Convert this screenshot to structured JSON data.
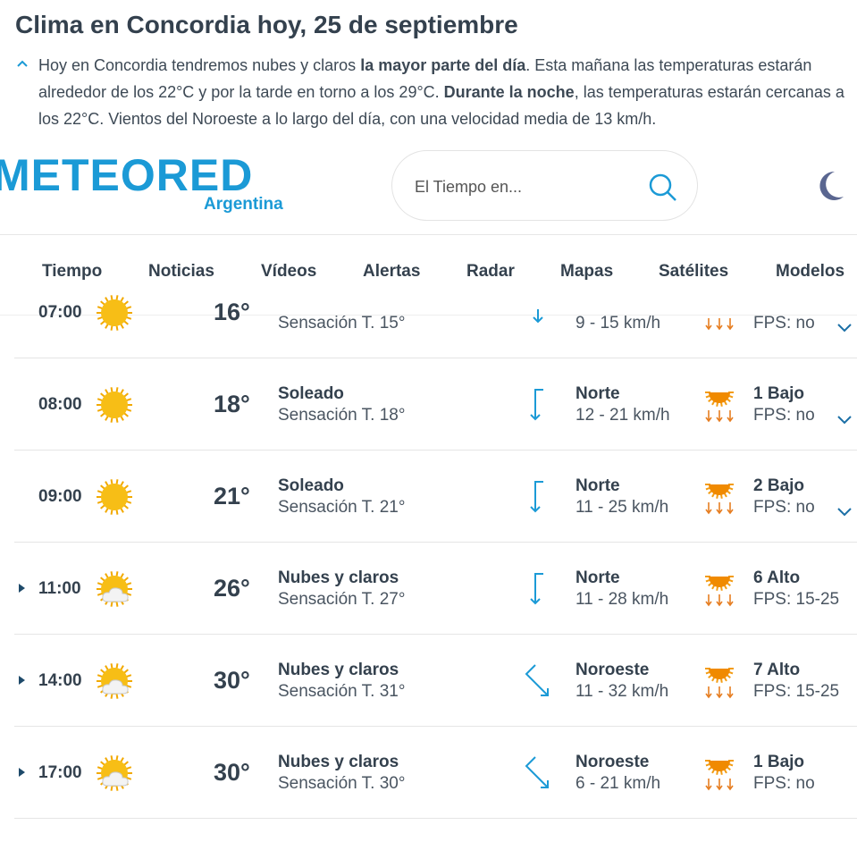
{
  "header": {
    "title": "Clima en Concordia hoy, 25 de septiembre",
    "summary": [
      {
        "text": "Hoy en Concordia tendremos nubes y claros ",
        "bold": false
      },
      {
        "text": "la mayor parte del día",
        "bold": true
      },
      {
        "text": ". Esta mañana las temperaturas estarán alrededor de los 22°C y por la tarde en torno a los 29°C. ",
        "bold": false
      },
      {
        "text": "Durante la noche",
        "bold": true
      },
      {
        "text": ", las temperaturas estarán cercanas a los 22°C. Vientos del Noroeste a lo largo del día, con una velocidad media de 13 km/h.",
        "bold": false
      }
    ]
  },
  "logo": {
    "name": "METEORED",
    "country": "Argentina"
  },
  "search": {
    "placeholder": "El Tiempo en..."
  },
  "nav": [
    "Tiempo",
    "Noticias",
    "Vídeos",
    "Alertas",
    "Radar",
    "Mapas",
    "Satélites",
    "Modelos"
  ],
  "rows": [
    {
      "time": "07:00",
      "temp": "16°",
      "condition": "",
      "feels": "Sensación T. 15°",
      "wind_dir": "",
      "wind_speed": "9 - 15 km/h",
      "uv": "",
      "fps": "FPS: no"
    },
    {
      "time": "08:00",
      "temp": "18°",
      "condition": "Soleado",
      "feels": "Sensación T. 18°",
      "wind_dir": "Norte",
      "wind_speed": "12 - 21 km/h",
      "uv": "1 Bajo",
      "fps": "FPS: no"
    },
    {
      "time": "09:00",
      "temp": "21°",
      "condition": "Soleado",
      "feels": "Sensación T. 21°",
      "wind_dir": "Norte",
      "wind_speed": "11 - 25 km/h",
      "uv": "2 Bajo",
      "fps": "FPS: no"
    },
    {
      "time": "11:00",
      "temp": "26°",
      "condition": "Nubes y claros",
      "feels": "Sensación T. 27°",
      "wind_dir": "Norte",
      "wind_speed": "11 - 28 km/h",
      "uv": "6 Alto",
      "fps": "FPS: 15-25"
    },
    {
      "time": "14:00",
      "temp": "30°",
      "condition": "Nubes y claros",
      "feels": "Sensación T. 31°",
      "wind_dir": "Noroeste",
      "wind_speed": "11 - 32 km/h",
      "uv": "7 Alto",
      "fps": "FPS: 15-25"
    },
    {
      "time": "17:00",
      "temp": "30°",
      "condition": "Nubes y claros",
      "feels": "Sensación T. 30°",
      "wind_dir": "Noroeste",
      "wind_speed": "6 - 21 km/h",
      "uv": "1 Bajo",
      "fps": "FPS: no"
    }
  ]
}
